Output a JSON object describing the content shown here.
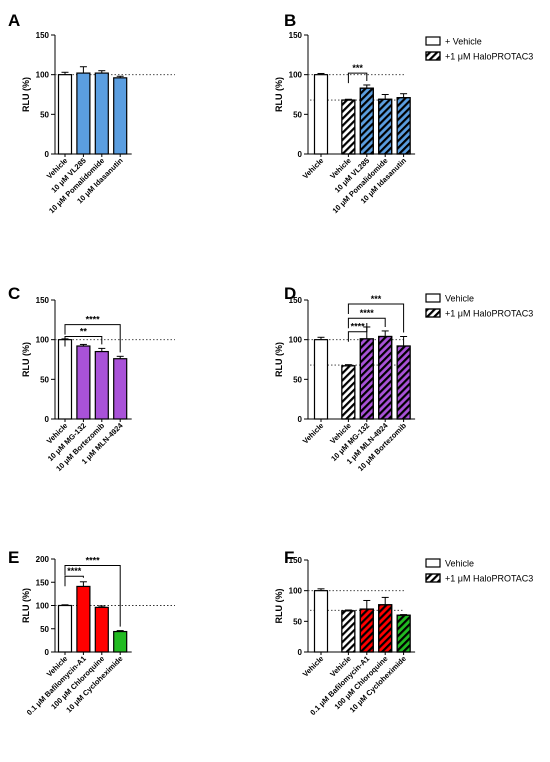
{
  "patterns": {
    "hatch": "hatch"
  },
  "chart_data": [
    {
      "panel": "A",
      "type": "bar",
      "ylabel": "RLU (%)",
      "ylim": [
        0,
        150
      ],
      "yticks": [
        0,
        50,
        100,
        150
      ],
      "ref_lines": [
        100
      ],
      "categories": [
        "Vehicle",
        "10 μM VL285",
        "10 μM Pomalidomide",
        "10 μM Idasanutin"
      ],
      "values": [
        100,
        102,
        102,
        96
      ],
      "errors": [
        3,
        8,
        3,
        2
      ],
      "fills": [
        "#ffffff",
        "#5b9ee0",
        "#5b9ee0",
        "#5b9ee0"
      ],
      "hatched": [
        false,
        false,
        false,
        false
      ],
      "significance": [],
      "legend": []
    },
    {
      "panel": "B",
      "type": "bar",
      "ylabel": "RLU (%)",
      "ylim": [
        0,
        150
      ],
      "yticks": [
        0,
        50,
        100,
        150
      ],
      "ref_lines": [
        100,
        68
      ],
      "categories": [
        "Vehicle",
        "Vehicle",
        "10 μM VL285",
        "10 μM Pomalidomide",
        "10 μM Idasanutin"
      ],
      "values": [
        100,
        68,
        83,
        69,
        71
      ],
      "errors": [
        1.5,
        1,
        4,
        6,
        5
      ],
      "fills": [
        "#ffffff",
        "#ffffff",
        "#5b9ee0",
        "#5b9ee0",
        "#5b9ee0"
      ],
      "hatched": [
        false,
        true,
        true,
        true,
        true
      ],
      "significance": [
        {
          "from": 1,
          "to": 2,
          "label": "***"
        }
      ],
      "legend": [
        {
          "label": "+ Vehicle",
          "hatched": false
        },
        {
          "label": "+1 μM HaloPROTAC3",
          "hatched": true
        }
      ]
    },
    {
      "panel": "C",
      "type": "bar",
      "ylabel": "RLU (%)",
      "ylim": [
        0,
        150
      ],
      "yticks": [
        0,
        50,
        100,
        150
      ],
      "ref_lines": [
        100
      ],
      "categories": [
        "Vehicle",
        "10 μM MG-132",
        "10 μM Bortezomib",
        "1 μM MLN-4924"
      ],
      "values": [
        100,
        92,
        85,
        76
      ],
      "errors": [
        1,
        2,
        4,
        3
      ],
      "fills": [
        "#ffffff",
        "#a952d8",
        "#a952d8",
        "#a952d8"
      ],
      "hatched": [
        false,
        false,
        false,
        false
      ],
      "significance": [
        {
          "from": 0,
          "to": 2,
          "label": "**"
        },
        {
          "from": 0,
          "to": 3,
          "label": "****"
        }
      ],
      "legend": []
    },
    {
      "panel": "D",
      "type": "bar",
      "ylabel": "RLU (%)",
      "ylim": [
        0,
        150
      ],
      "yticks": [
        0,
        50,
        100,
        150
      ],
      "ref_lines": [
        100,
        68
      ],
      "categories": [
        "Vehicle",
        "Vehicle",
        "10 μM MG-132",
        "1 μM MLN-4924",
        "10 μM Bortezomib"
      ],
      "values": [
        100,
        67,
        101,
        104,
        92
      ],
      "errors": [
        3,
        1.5,
        15,
        7,
        12
      ],
      "fills": [
        "#ffffff",
        "#ffffff",
        "#a952d8",
        "#a952d8",
        "#a952d8"
      ],
      "hatched": [
        false,
        true,
        true,
        true,
        true
      ],
      "significance": [
        {
          "from": 1,
          "to": 2,
          "label": "****"
        },
        {
          "from": 1,
          "to": 3,
          "label": "****"
        },
        {
          "from": 1,
          "to": 4,
          "label": "***"
        }
      ],
      "legend": [
        {
          "label": "Vehicle",
          "hatched": false
        },
        {
          "label": "+1 μM HaloPROTAC3",
          "hatched": true
        }
      ]
    },
    {
      "panel": "E",
      "type": "bar",
      "ylabel": "RLU (%)",
      "ylim": [
        0,
        200
      ],
      "yticks": [
        0,
        50,
        100,
        150,
        200
      ],
      "ref_lines": [
        100
      ],
      "categories": [
        "Vehicle",
        "0.1 μM Bafilomycin-A1",
        "100 μM Chloroquine",
        "10 μM Cycloheximide"
      ],
      "values": [
        100,
        141,
        96,
        44
      ],
      "errors": [
        1.5,
        10,
        3,
        2
      ],
      "fills": [
        "#ffffff",
        "#ff0000",
        "#ff0000",
        "#22bb22"
      ],
      "hatched": [
        false,
        false,
        false,
        false
      ],
      "significance": [
        {
          "from": 0,
          "to": 1,
          "label": "****"
        },
        {
          "from": 0,
          "to": 3,
          "label": "****"
        }
      ],
      "legend": []
    },
    {
      "panel": "F",
      "type": "bar",
      "ylabel": "RLU (%)",
      "ylim": [
        0,
        150
      ],
      "yticks": [
        0,
        50,
        100,
        150
      ],
      "ref_lines": [
        100,
        68
      ],
      "categories": [
        "Vehicle",
        "Vehicle",
        "0.1 μM Bafilomycin-A1",
        "100 μM Chloroquine",
        "10 μM Cycloheximide"
      ],
      "values": [
        100,
        67,
        70,
        77,
        60
      ],
      "errors": [
        3,
        1.5,
        14,
        12,
        1
      ],
      "fills": [
        "#ffffff",
        "#ffffff",
        "#ff0000",
        "#ff0000",
        "#22bb22"
      ],
      "hatched": [
        false,
        true,
        true,
        true,
        true
      ],
      "significance": [],
      "legend": [
        {
          "label": "Vehicle",
          "hatched": false
        },
        {
          "label": "+1 μM HaloPROTAC3",
          "hatched": true
        }
      ]
    }
  ]
}
